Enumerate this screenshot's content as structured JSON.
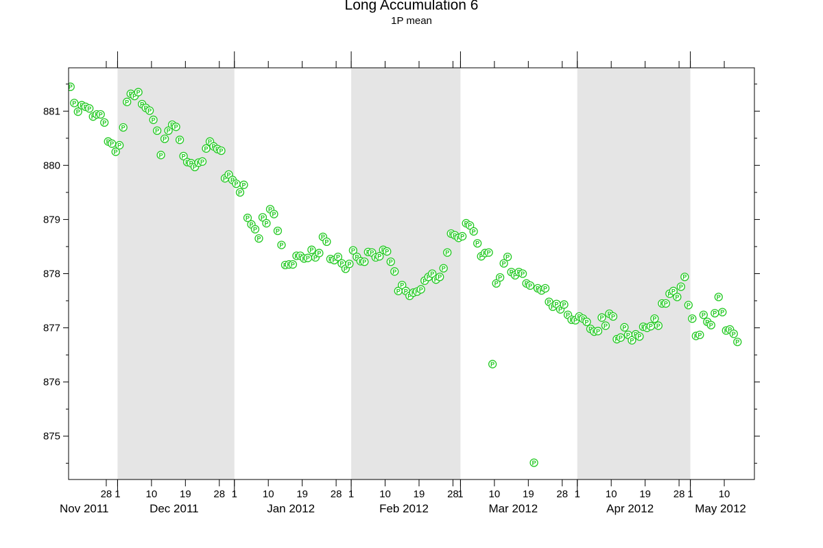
{
  "chart_data": {
    "type": "scatter",
    "title": "Long Accumulation 6",
    "subtitle": "1P mean",
    "xlabel": "",
    "ylabel": "",
    "x_range": [
      "2011-11-18",
      "2012-05-17"
    ],
    "ylim": [
      874.2,
      881.8
    ],
    "y_ticks": [
      875,
      876,
      877,
      878,
      879,
      880,
      881
    ],
    "grid": false,
    "marker": "P",
    "colors": {
      "marker": "#22c922",
      "shade": "#e5e5e5",
      "background": "#ffffff"
    },
    "shaded_months": [
      "2011-12",
      "2012-02",
      "2012-04"
    ],
    "month_boundaries": [
      "2011-12-01",
      "2012-01-01",
      "2012-02-01",
      "2012-03-01",
      "2012-04-01",
      "2012-05-01"
    ],
    "x_ticks": [
      {
        "date": "2011-11-28",
        "label": "28"
      },
      {
        "date": "2011-12-01",
        "label": "1"
      },
      {
        "date": "2011-12-10",
        "label": "10"
      },
      {
        "date": "2011-12-19",
        "label": "19"
      },
      {
        "date": "2011-12-28",
        "label": "28"
      },
      {
        "date": "2012-01-01",
        "label": "1"
      },
      {
        "date": "2012-01-10",
        "label": "10"
      },
      {
        "date": "2012-01-19",
        "label": "19"
      },
      {
        "date": "2012-01-28",
        "label": "28"
      },
      {
        "date": "2012-02-01",
        "label": "1"
      },
      {
        "date": "2012-02-10",
        "label": "10"
      },
      {
        "date": "2012-02-19",
        "label": "19"
      },
      {
        "date": "2012-02-28",
        "label": "28"
      },
      {
        "date": "2012-03-01",
        "label": "1"
      },
      {
        "date": "2012-03-10",
        "label": "10"
      },
      {
        "date": "2012-03-19",
        "label": "19"
      },
      {
        "date": "2012-03-28",
        "label": "28"
      },
      {
        "date": "2012-04-01",
        "label": "1"
      },
      {
        "date": "2012-04-10",
        "label": "10"
      },
      {
        "date": "2012-04-19",
        "label": "19"
      },
      {
        "date": "2012-04-28",
        "label": "28"
      },
      {
        "date": "2012-05-01",
        "label": "1"
      },
      {
        "date": "2012-05-10",
        "label": "10"
      }
    ],
    "month_labels": [
      {
        "date": "2011-11-18",
        "label": "Nov 2011"
      },
      {
        "date": "2011-12-16",
        "label": "Dec 2011"
      },
      {
        "date": "2012-01-16",
        "label": "Jan 2012"
      },
      {
        "date": "2012-02-15",
        "label": "Feb 2012"
      },
      {
        "date": "2012-03-15",
        "label": "Mar 2012"
      },
      {
        "date": "2012-04-15",
        "label": "Apr 2012"
      },
      {
        "date": "2012-05-09",
        "label": "May 2012"
      }
    ],
    "points": [
      [
        "2011-11-18",
        881.45
      ],
      [
        "2011-11-19",
        881.15
      ],
      [
        "2011-11-20",
        880.99
      ],
      [
        "2011-11-21",
        881.11
      ],
      [
        "2011-11-22",
        881.08
      ],
      [
        "2011-11-23",
        881.05
      ],
      [
        "2011-11-24",
        880.9
      ],
      [
        "2011-11-25",
        880.94
      ],
      [
        "2011-11-26",
        880.94
      ],
      [
        "2011-11-27",
        880.79
      ],
      [
        "2011-11-28",
        880.44
      ],
      [
        "2011-11-29",
        880.4
      ],
      [
        "2011-11-30",
        880.25
      ],
      [
        "2011-12-01",
        880.37
      ],
      [
        "2011-12-02",
        880.7
      ],
      [
        "2011-12-03",
        881.17
      ],
      [
        "2011-12-04",
        881.32
      ],
      [
        "2011-12-05",
        881.28
      ],
      [
        "2011-12-06",
        881.35
      ],
      [
        "2011-12-07",
        881.13
      ],
      [
        "2011-12-08",
        881.06
      ],
      [
        "2011-12-09",
        881.01
      ],
      [
        "2011-12-10",
        880.84
      ],
      [
        "2011-12-11",
        880.64
      ],
      [
        "2011-12-12",
        880.19
      ],
      [
        "2011-12-13",
        880.49
      ],
      [
        "2011-12-14",
        880.64
      ],
      [
        "2011-12-15",
        880.75
      ],
      [
        "2011-12-16",
        880.71
      ],
      [
        "2011-12-17",
        880.47
      ],
      [
        "2011-12-18",
        880.17
      ],
      [
        "2011-12-19",
        880.06
      ],
      [
        "2011-12-20",
        880.04
      ],
      [
        "2011-12-21",
        879.97
      ],
      [
        "2011-12-22",
        880.05
      ],
      [
        "2011-12-23",
        880.07
      ],
      [
        "2011-12-24",
        880.31
      ],
      [
        "2011-12-25",
        880.44
      ],
      [
        "2011-12-26",
        880.35
      ],
      [
        "2011-12-27",
        880.3
      ],
      [
        "2011-12-28",
        880.27
      ],
      [
        "2011-12-29",
        879.76
      ],
      [
        "2011-12-30",
        879.83
      ],
      [
        "2011-12-31",
        879.73
      ],
      [
        "2012-01-01",
        879.66
      ],
      [
        "2012-01-02",
        879.5
      ],
      [
        "2012-01-03",
        879.64
      ],
      [
        "2012-01-04",
        879.03
      ],
      [
        "2012-01-05",
        878.91
      ],
      [
        "2012-01-06",
        878.82
      ],
      [
        "2012-01-07",
        878.65
      ],
      [
        "2012-01-08",
        879.04
      ],
      [
        "2012-01-09",
        878.93
      ],
      [
        "2012-01-10",
        879.19
      ],
      [
        "2012-01-11",
        879.1
      ],
      [
        "2012-01-12",
        878.79
      ],
      [
        "2012-01-13",
        878.53
      ],
      [
        "2012-01-14",
        878.16
      ],
      [
        "2012-01-15",
        878.17
      ],
      [
        "2012-01-16",
        878.17
      ],
      [
        "2012-01-17",
        878.33
      ],
      [
        "2012-01-18",
        878.33
      ],
      [
        "2012-01-19",
        878.28
      ],
      [
        "2012-01-20",
        878.29
      ],
      [
        "2012-01-21",
        878.44
      ],
      [
        "2012-01-22",
        878.3
      ],
      [
        "2012-01-23",
        878.38
      ],
      [
        "2012-01-24",
        878.68
      ],
      [
        "2012-01-25",
        878.59
      ],
      [
        "2012-01-26",
        878.27
      ],
      [
        "2012-01-27",
        878.25
      ],
      [
        "2012-01-28",
        878.31
      ],
      [
        "2012-01-29",
        878.19
      ],
      [
        "2012-01-30",
        878.09
      ],
      [
        "2012-01-31",
        878.18
      ],
      [
        "2012-02-01",
        878.43
      ],
      [
        "2012-02-02",
        878.31
      ],
      [
        "2012-02-03",
        878.23
      ],
      [
        "2012-02-04",
        878.22
      ],
      [
        "2012-02-05",
        878.4
      ],
      [
        "2012-02-06",
        878.39
      ],
      [
        "2012-02-07",
        878.3
      ],
      [
        "2012-02-08",
        878.32
      ],
      [
        "2012-02-09",
        878.44
      ],
      [
        "2012-02-10",
        878.41
      ],
      [
        "2012-02-11",
        878.22
      ],
      [
        "2012-02-12",
        878.04
      ],
      [
        "2012-02-13",
        877.68
      ],
      [
        "2012-02-14",
        877.79
      ],
      [
        "2012-02-15",
        877.68
      ],
      [
        "2012-02-16",
        877.59
      ],
      [
        "2012-02-17",
        877.65
      ],
      [
        "2012-02-18",
        877.67
      ],
      [
        "2012-02-19",
        877.71
      ],
      [
        "2012-02-20",
        877.87
      ],
      [
        "2012-02-21",
        877.94
      ],
      [
        "2012-02-22",
        878.0
      ],
      [
        "2012-02-23",
        877.89
      ],
      [
        "2012-02-24",
        877.94
      ],
      [
        "2012-02-25",
        878.1
      ],
      [
        "2012-02-26",
        878.39
      ],
      [
        "2012-02-27",
        878.74
      ],
      [
        "2012-02-28",
        878.71
      ],
      [
        "2012-02-29",
        878.66
      ],
      [
        "2012-03-01",
        878.69
      ],
      [
        "2012-03-02",
        878.93
      ],
      [
        "2012-03-03",
        878.89
      ],
      [
        "2012-03-04",
        878.78
      ],
      [
        "2012-03-05",
        878.56
      ],
      [
        "2012-03-06",
        878.32
      ],
      [
        "2012-03-07",
        878.38
      ],
      [
        "2012-03-08",
        878.39
      ],
      [
        "2012-03-09",
        876.33
      ],
      [
        "2012-03-10",
        877.82
      ],
      [
        "2012-03-11",
        877.93
      ],
      [
        "2012-03-12",
        878.19
      ],
      [
        "2012-03-13",
        878.31
      ],
      [
        "2012-03-14",
        878.03
      ],
      [
        "2012-03-15",
        877.97
      ],
      [
        "2012-03-16",
        878.03
      ],
      [
        "2012-03-17",
        878.0
      ],
      [
        "2012-03-18",
        877.82
      ],
      [
        "2012-03-19",
        877.78
      ],
      [
        "2012-03-20",
        874.51
      ],
      [
        "2012-03-21",
        877.73
      ],
      [
        "2012-03-22",
        877.69
      ],
      [
        "2012-03-23",
        877.73
      ],
      [
        "2012-03-24",
        877.48
      ],
      [
        "2012-03-25",
        877.39
      ],
      [
        "2012-03-26",
        877.44
      ],
      [
        "2012-03-27",
        877.34
      ],
      [
        "2012-03-28",
        877.43
      ],
      [
        "2012-03-29",
        877.24
      ],
      [
        "2012-03-30",
        877.15
      ],
      [
        "2012-03-31",
        877.14
      ],
      [
        "2012-04-01",
        877.21
      ],
      [
        "2012-04-02",
        877.17
      ],
      [
        "2012-04-03",
        877.11
      ],
      [
        "2012-04-04",
        876.98
      ],
      [
        "2012-04-05",
        876.93
      ],
      [
        "2012-04-06",
        876.94
      ],
      [
        "2012-04-07",
        877.19
      ],
      [
        "2012-04-08",
        877.04
      ],
      [
        "2012-04-09",
        877.26
      ],
      [
        "2012-04-10",
        877.21
      ],
      [
        "2012-04-11",
        876.79
      ],
      [
        "2012-04-12",
        876.82
      ],
      [
        "2012-04-13",
        877.01
      ],
      [
        "2012-04-14",
        876.87
      ],
      [
        "2012-04-15",
        876.77
      ],
      [
        "2012-04-16",
        876.88
      ],
      [
        "2012-04-17",
        876.84
      ],
      [
        "2012-04-18",
        877.02
      ],
      [
        "2012-04-19",
        877.0
      ],
      [
        "2012-04-20",
        877.03
      ],
      [
        "2012-04-21",
        877.17
      ],
      [
        "2012-04-22",
        877.04
      ],
      [
        "2012-04-23",
        877.45
      ],
      [
        "2012-04-24",
        877.45
      ],
      [
        "2012-04-25",
        877.63
      ],
      [
        "2012-04-26",
        877.68
      ],
      [
        "2012-04-27",
        877.57
      ],
      [
        "2012-04-28",
        877.76
      ],
      [
        "2012-04-29",
        877.94
      ],
      [
        "2012-04-30",
        877.42
      ],
      [
        "2012-05-01",
        877.17
      ],
      [
        "2012-05-02",
        876.85
      ],
      [
        "2012-05-03",
        876.87
      ],
      [
        "2012-05-04",
        877.24
      ],
      [
        "2012-05-05",
        877.11
      ],
      [
        "2012-05-06",
        877.05
      ],
      [
        "2012-05-07",
        877.27
      ],
      [
        "2012-05-08",
        877.57
      ],
      [
        "2012-05-09",
        877.29
      ],
      [
        "2012-05-10",
        876.95
      ],
      [
        "2012-05-11",
        876.97
      ],
      [
        "2012-05-12",
        876.89
      ],
      [
        "2012-05-13",
        876.74
      ]
    ]
  }
}
